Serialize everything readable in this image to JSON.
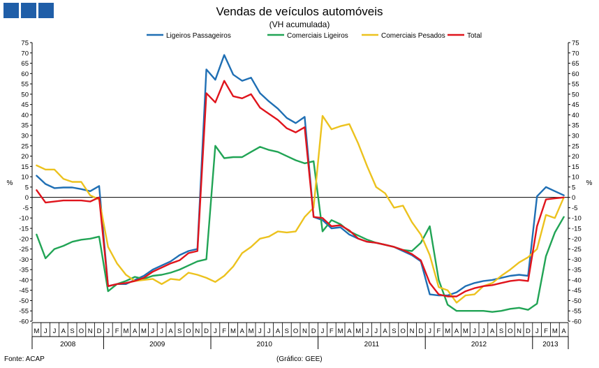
{
  "chart_data": {
    "type": "line",
    "title": "Vendas de veículos automóveis",
    "subtitle": "(VH acumulada)",
    "ylabel_left": "%",
    "ylabel_right": "%",
    "ylim": [
      -60,
      75
    ],
    "ystep": 5,
    "grid": false,
    "legend_position": "top",
    "source": "Fonte: ACAP",
    "credit": "(Gráfico: GEE)",
    "months": [
      "M",
      "J",
      "J",
      "A",
      "S",
      "O",
      "N",
      "D",
      "J",
      "F",
      "M",
      "A",
      "M",
      "J",
      "J",
      "A",
      "S",
      "O",
      "N",
      "D",
      "J",
      "F",
      "M",
      "A",
      "M",
      "J",
      "J",
      "A",
      "S",
      "O",
      "N",
      "D",
      "J",
      "F",
      "M",
      "A",
      "M",
      "J",
      "J",
      "A",
      "S",
      "O",
      "N",
      "D",
      "J",
      "F",
      "M",
      "A",
      "M",
      "J",
      "J",
      "A",
      "S",
      "O",
      "N",
      "D",
      "J",
      "F",
      "M",
      "A"
    ],
    "years": [
      {
        "label": "2008",
        "start": 0,
        "count": 8
      },
      {
        "label": "2009",
        "start": 8,
        "count": 12
      },
      {
        "label": "2010",
        "start": 20,
        "count": 12
      },
      {
        "label": "2011",
        "start": 32,
        "count": 12
      },
      {
        "label": "2012",
        "start": 44,
        "count": 12
      },
      {
        "label": "2013",
        "start": 56,
        "count": 4
      }
    ],
    "series": [
      {
        "name": "Ligeiros Passageiros",
        "color": "#1f6fb4",
        "values": [
          10.5,
          6.5,
          4.5,
          4.8,
          4.8,
          4,
          3,
          5.5,
          -43,
          -42,
          -42,
          -40,
          -38,
          -35,
          -33,
          -31,
          -28,
          -26,
          -25,
          62,
          57,
          69,
          59.5,
          56.5,
          58,
          50.5,
          46.5,
          43,
          38.5,
          36,
          39,
          -9.5,
          -11,
          -15,
          -14.5,
          -18,
          -20,
          -21.5,
          -22,
          -23,
          -24,
          -26,
          -28,
          -31,
          -47,
          -47.5,
          -47.5,
          -46,
          -43,
          -41.5,
          -40.5,
          -40,
          -39,
          -38,
          -37.5,
          -38,
          0.5,
          5,
          3,
          1
        ]
      },
      {
        "name": "Comerciais Ligeiros",
        "color": "#21a455",
        "values": [
          -18,
          -29.5,
          -25,
          -23.5,
          -21.5,
          -20.5,
          -20,
          -19,
          -45.5,
          -42,
          -40.5,
          -38.5,
          -39.5,
          -38,
          -37.5,
          -36.5,
          -35,
          -33,
          -31,
          -30,
          25,
          19,
          19.5,
          19.5,
          22,
          24.5,
          23,
          22,
          20,
          18,
          16.5,
          17.5,
          -16.5,
          -11,
          -13,
          -16.5,
          -18.5,
          -20.5,
          -22,
          -23,
          -24,
          -25.5,
          -26,
          -22,
          -14,
          -40,
          -52,
          -55,
          -55,
          -55,
          -55,
          -55.5,
          -55,
          -54,
          -53.5,
          -54.5,
          -51.5,
          -28.5,
          -17,
          -9.5
        ]
      },
      {
        "name": "Comerciais Pesados",
        "color": "#ecc21e",
        "values": [
          15.5,
          13.5,
          13.5,
          9,
          7.5,
          7.5,
          1,
          -1,
          -24,
          -32,
          -37.5,
          -40.5,
          -40,
          -39.5,
          -42,
          -39.5,
          -40,
          -36.5,
          -37.5,
          -39,
          -41,
          -38,
          -33.5,
          -27,
          -24,
          -20,
          -19,
          -16.5,
          -17,
          -16.5,
          -9.5,
          -5,
          39.5,
          33,
          34.5,
          35.5,
          26,
          15,
          5,
          2,
          -5,
          -4,
          -12,
          -18,
          -28,
          -43.5,
          -45,
          -51,
          -47.5,
          -47,
          -43,
          -41.5,
          -38,
          -35,
          -31.5,
          -29,
          -25,
          -8.5,
          -10,
          0
        ]
      },
      {
        "name": "Total",
        "color": "#e0141c",
        "values": [
          3.5,
          -2.5,
          -2,
          -1.5,
          -1.5,
          -1.5,
          -2,
          0,
          -43,
          -42,
          -41.5,
          -40.5,
          -39,
          -36,
          -34,
          -32,
          -30.5,
          -27,
          -26,
          50.5,
          46,
          56.5,
          49,
          48,
          50,
          43.5,
          40.5,
          37.5,
          33.5,
          31.5,
          34,
          -9.5,
          -10,
          -14,
          -13.5,
          -16,
          -20,
          -21.5,
          -22,
          -23,
          -24,
          -25.5,
          -27.5,
          -30.5,
          -41.5,
          -47,
          -48,
          -48,
          -45.5,
          -44,
          -43,
          -42.5,
          -41.5,
          -40.5,
          -40,
          -40.5,
          -14,
          -1,
          -0.5,
          0
        ]
      }
    ]
  }
}
